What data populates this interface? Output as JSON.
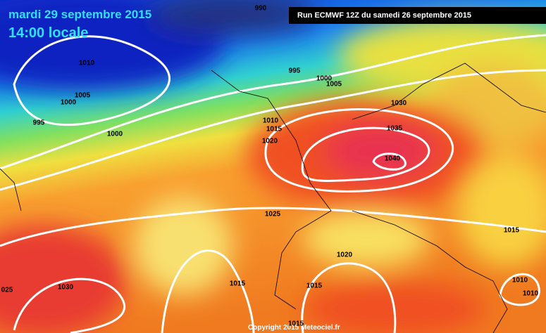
{
  "header": {
    "title": "mardi 29 septembre 2015",
    "subtitle": "14:00 locale",
    "run": "Run ECMWF 12Z du samedi 26 septembre 2015"
  },
  "footer": {
    "copyright": "Copyright 2015 Meteociel.fr"
  },
  "isobar_labels": [
    "990",
    "1010",
    "1005",
    "1000",
    "995",
    "1000",
    "995",
    "1000",
    "1005",
    "1030",
    "1010",
    "1015",
    "1035",
    "1020",
    "1040",
    "1025",
    "1015",
    "1020",
    "025",
    "1030",
    "1015",
    "1015",
    "1010",
    "1010",
    "1015"
  ]
}
